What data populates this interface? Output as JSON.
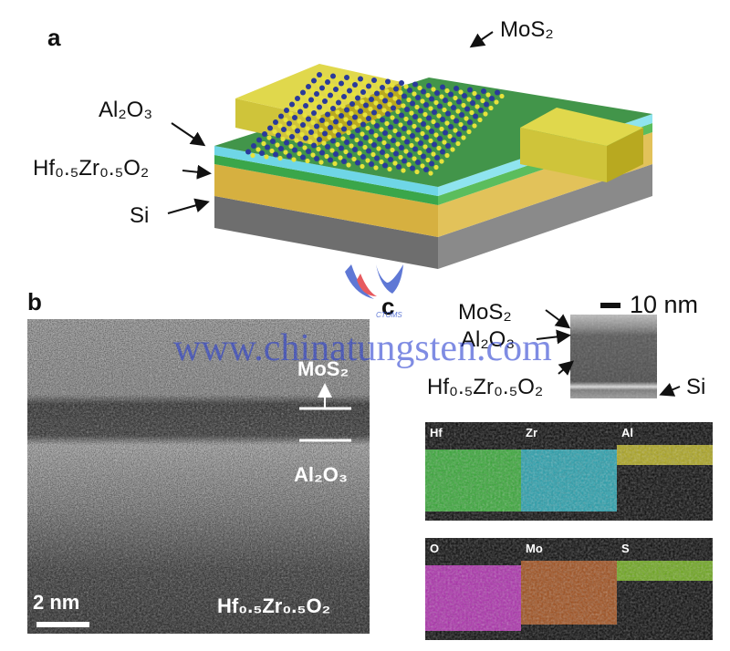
{
  "panel_a": {
    "label": "a",
    "annotations": [
      "MoS₂",
      "Al₂O₃",
      "Hf₀.₅Zr₀.₅O₂",
      "Si"
    ]
  },
  "panel_b": {
    "label": "b",
    "annotations": [
      "MoS₂",
      "Al₂O₃",
      "Hf₀.₅Zr₀.₅O₂"
    ],
    "scale_bar": "2 nm"
  },
  "panel_c": {
    "label": "c",
    "scale_bar": "10 nm",
    "annotations": [
      "MoS₂",
      "Al₂O₃",
      "Hf₀.₅Zr₀.₅O₂",
      "Si"
    ],
    "maps": [
      "Hf",
      "Zr",
      "Al",
      "O",
      "Mo",
      "S"
    ]
  },
  "watermark": {
    "url": "www.chinatungsten.com",
    "logo": "CTOMS"
  }
}
